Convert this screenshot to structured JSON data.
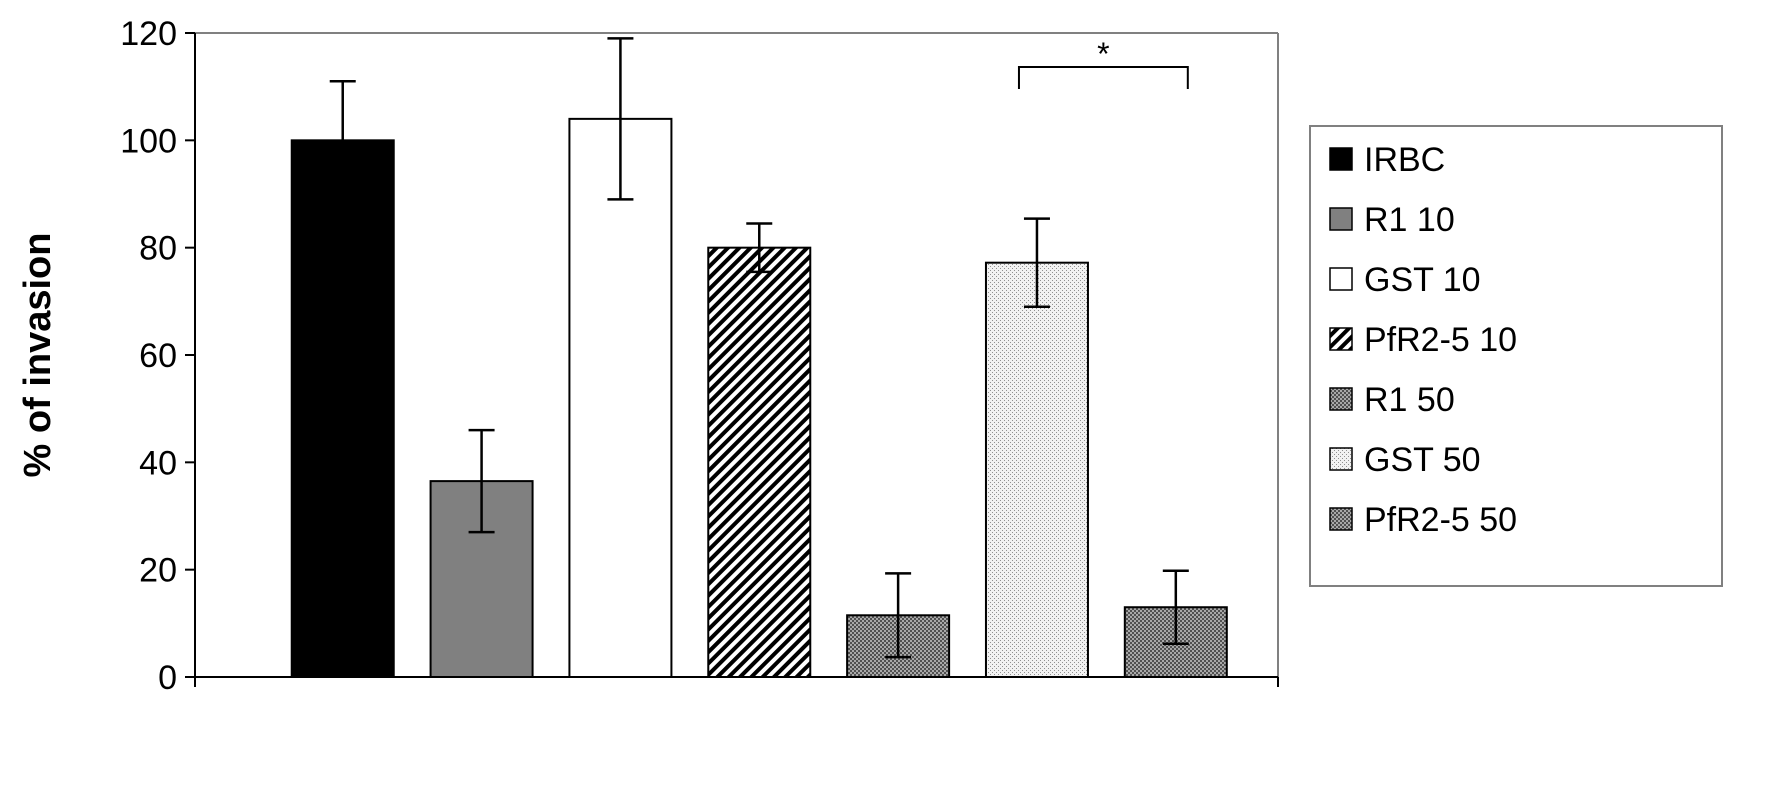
{
  "chart_data": {
    "type": "bar",
    "title": "",
    "xlabel": "",
    "ylabel": "% of invasion",
    "ylim": [
      0,
      120
    ],
    "yticks": [
      0,
      20,
      40,
      60,
      80,
      100,
      120
    ],
    "grid": false,
    "legend_position": "right",
    "series": [
      {
        "name": "IRBC",
        "value": 100,
        "error": 11,
        "fill": "solid-black"
      },
      {
        "name": "R1 10",
        "value": 36.5,
        "error": 9.5,
        "fill": "solid-gray"
      },
      {
        "name": "GST 10",
        "value": 104,
        "error": 15,
        "fill": "white"
      },
      {
        "name": "PfR2-5 10",
        "value": 80,
        "error": 4.5,
        "fill": "diagonal-hatch"
      },
      {
        "name": "R1 50",
        "value": 11.5,
        "error": 7.8,
        "fill": "fine-crosshatch"
      },
      {
        "name": "GST 50",
        "value": 77.2,
        "error": 8.2,
        "fill": "light-dots"
      },
      {
        "name": "PfR2-5 50",
        "value": 13,
        "error": 6.8,
        "fill": "fine-crosshatch"
      }
    ],
    "annotations": [
      {
        "text": "*",
        "type": "significance-bracket",
        "from": "GST 50",
        "to": "PfR2-5 50"
      }
    ],
    "colors": {
      "axis": "#000000",
      "plot_border": "#808080",
      "black_bar": "#000000",
      "gray_bar": "#808080",
      "white_bar": "#ffffff"
    }
  }
}
